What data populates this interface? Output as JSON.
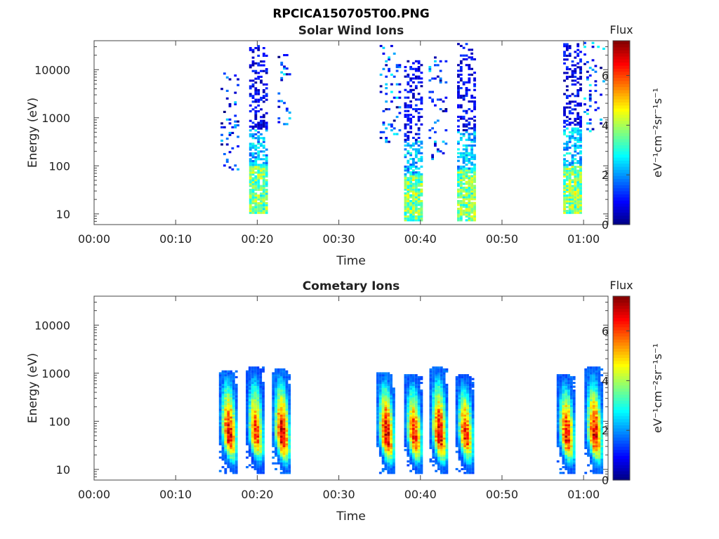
{
  "figure_title": "RPCICA150705T00.PNG",
  "colorbar": {
    "label": "Flux",
    "unit_text": "eV⁻¹cm⁻²sr⁻¹s⁻¹",
    "range": [
      0,
      7.4
    ],
    "ticks": [
      "0",
      "2",
      "4",
      "6"
    ],
    "colormap": "jet"
  },
  "chart_data": [
    {
      "type": "heatmap",
      "title": "Solar Wind Ions",
      "xlabel": "Time",
      "ylabel": "Energy (eV)",
      "x_tick_labels": [
        "00:00",
        "00:10",
        "00:20",
        "00:30",
        "00:40",
        "00:50",
        "01:00"
      ],
      "x_range_min": [
        0,
        63
      ],
      "y_tick_labels": [
        "10",
        "100",
        "1000",
        "10000"
      ],
      "y_scale": "log",
      "y_range_eV": [
        6,
        40000
      ],
      "bursts": [
        {
          "t_min": 19.0,
          "t_max": 21.0,
          "e_min": 10,
          "e_max": 30000,
          "peak_flux": 4.6
        },
        {
          "t_min": 38.0,
          "t_max": 40.0,
          "e_min": 7,
          "e_max": 15000,
          "peak_flux": 4.8
        },
        {
          "t_min": 44.5,
          "t_max": 46.8,
          "e_min": 7,
          "e_max": 35000,
          "peak_flux": 4.6
        },
        {
          "t_min": 57.5,
          "t_max": 59.8,
          "e_min": 10,
          "e_max": 35000,
          "peak_flux": 4.8
        }
      ],
      "scatter": [
        {
          "t_min": 15.5,
          "t_max": 17.8,
          "e_min": 80,
          "e_max": 8000,
          "peak_flux": 2.5
        },
        {
          "t_min": 22.5,
          "t_max": 24.0,
          "e_min": 700,
          "e_max": 20000,
          "peak_flux": 3.0
        },
        {
          "t_min": 35.0,
          "t_max": 37.5,
          "e_min": 300,
          "e_max": 30000,
          "peak_flux": 2.8
        },
        {
          "t_min": 41.0,
          "t_max": 43.0,
          "e_min": 120,
          "e_max": 20000,
          "peak_flux": 2.6
        },
        {
          "t_min": 60.0,
          "t_max": 62.5,
          "e_min": 500,
          "e_max": 35000,
          "peak_flux": 3.0
        }
      ]
    },
    {
      "type": "heatmap",
      "title": "Cometary Ions",
      "xlabel": "Time",
      "ylabel": "Energy (eV)",
      "x_tick_labels": [
        "00:00",
        "00:10",
        "00:20",
        "00:30",
        "00:40",
        "00:50",
        "01:00"
      ],
      "x_range_min": [
        0,
        63
      ],
      "y_tick_labels": [
        "10",
        "100",
        "1000",
        "10000"
      ],
      "y_scale": "log",
      "y_range_eV": [
        6,
        40000
      ],
      "bursts": [
        {
          "t_center": 16.5,
          "e_center": 45,
          "e_max": 1100,
          "peak_flux": 7.2
        },
        {
          "t_center": 19.8,
          "e_center": 45,
          "e_max": 1300,
          "peak_flux": 6.6
        },
        {
          "t_center": 23.0,
          "e_center": 42,
          "e_max": 1200,
          "peak_flux": 7.4
        },
        {
          "t_center": 35.8,
          "e_center": 42,
          "e_max": 1000,
          "peak_flux": 7.4
        },
        {
          "t_center": 39.2,
          "e_center": 42,
          "e_max": 900,
          "peak_flux": 6.8
        },
        {
          "t_center": 42.3,
          "e_center": 42,
          "e_max": 1300,
          "peak_flux": 7.2
        },
        {
          "t_center": 45.5,
          "e_center": 42,
          "e_max": 900,
          "peak_flux": 6.8
        },
        {
          "t_center": 57.9,
          "e_center": 42,
          "e_max": 900,
          "peak_flux": 7.0
        },
        {
          "t_center": 61.3,
          "e_center": 42,
          "e_max": 1300,
          "peak_flux": 7.2
        }
      ]
    }
  ]
}
